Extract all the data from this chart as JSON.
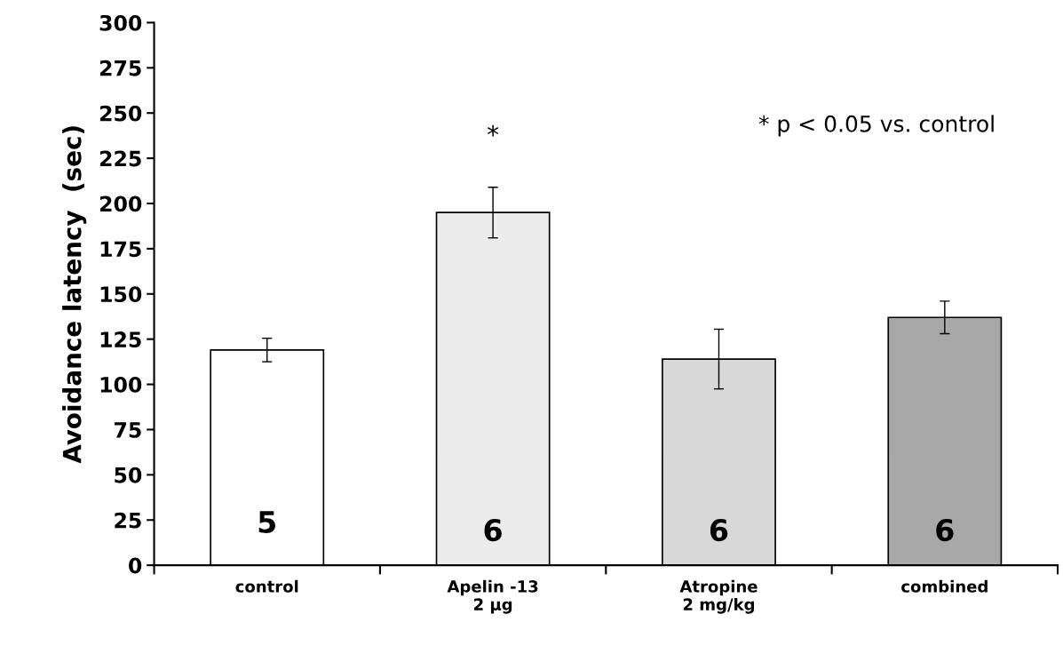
{
  "chart_data": {
    "type": "bar",
    "ylabel": "Avoidance latency  (sec)",
    "categories": [
      "control",
      "Apelin -13\n2 µg",
      "Atropine\n2 mg/kg",
      "combined"
    ],
    "values": [
      119,
      195,
      114,
      137
    ],
    "errors": [
      6.5,
      14,
      16.5,
      9
    ],
    "colors": [
      "#ffffff",
      "#ececec",
      "#d8d8d8",
      "#a8a8a8"
    ],
    "ylim": [
      0,
      300
    ],
    "yticks": [
      0,
      25,
      50,
      75,
      100,
      125,
      150,
      175,
      200,
      225,
      250,
      275,
      300
    ],
    "grid": false,
    "annotations": [
      "* p < 0.05 vs. control",
      "*",
      "5",
      "6",
      "6",
      "6"
    ]
  }
}
